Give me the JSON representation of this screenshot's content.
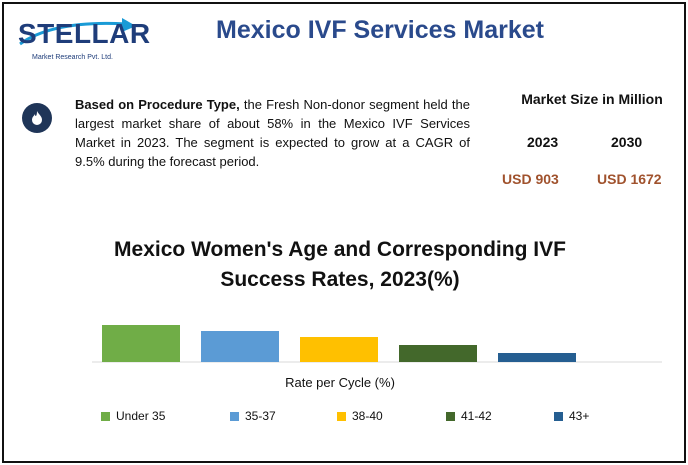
{
  "header": {
    "logo_text": "STELLAR",
    "logo_subtitle": "Market Research Pvt. Ltd.",
    "title": "Mexico IVF Services Market"
  },
  "summary": {
    "lead": "Based on Procedure Type,",
    "body": " the Fresh Non-donor segment held the largest market share of about 58% in the Mexico IVF Services Market in 2023. The segment is expected to grow at a CAGR of 9.5% during the forecast period."
  },
  "market_size": {
    "title": "Market Size in Million",
    "years": [
      "2023",
      "2030"
    ],
    "values": [
      "USD 903",
      "USD 1672"
    ]
  },
  "colors": {
    "title": "#2a4a8c",
    "value": "#a0522d",
    "icon_bg": "#1f3558"
  },
  "chart_data": {
    "type": "bar",
    "title": "Mexico Women's Age and Corresponding IVF Success Rates, 2023(%)",
    "xlabel": "Rate per Cycle (%)",
    "ylabel": "",
    "categories": [
      "Under 35",
      "35-37",
      "38-40",
      "41-42",
      "43+"
    ],
    "values": [
      37,
      31,
      25,
      17,
      9
    ],
    "colors": [
      "#70ad47",
      "#5b9bd5",
      "#ffc000",
      "#43682b",
      "#255e91"
    ],
    "ylim": [
      0,
      40
    ],
    "grid": false,
    "legend": "bottom"
  }
}
